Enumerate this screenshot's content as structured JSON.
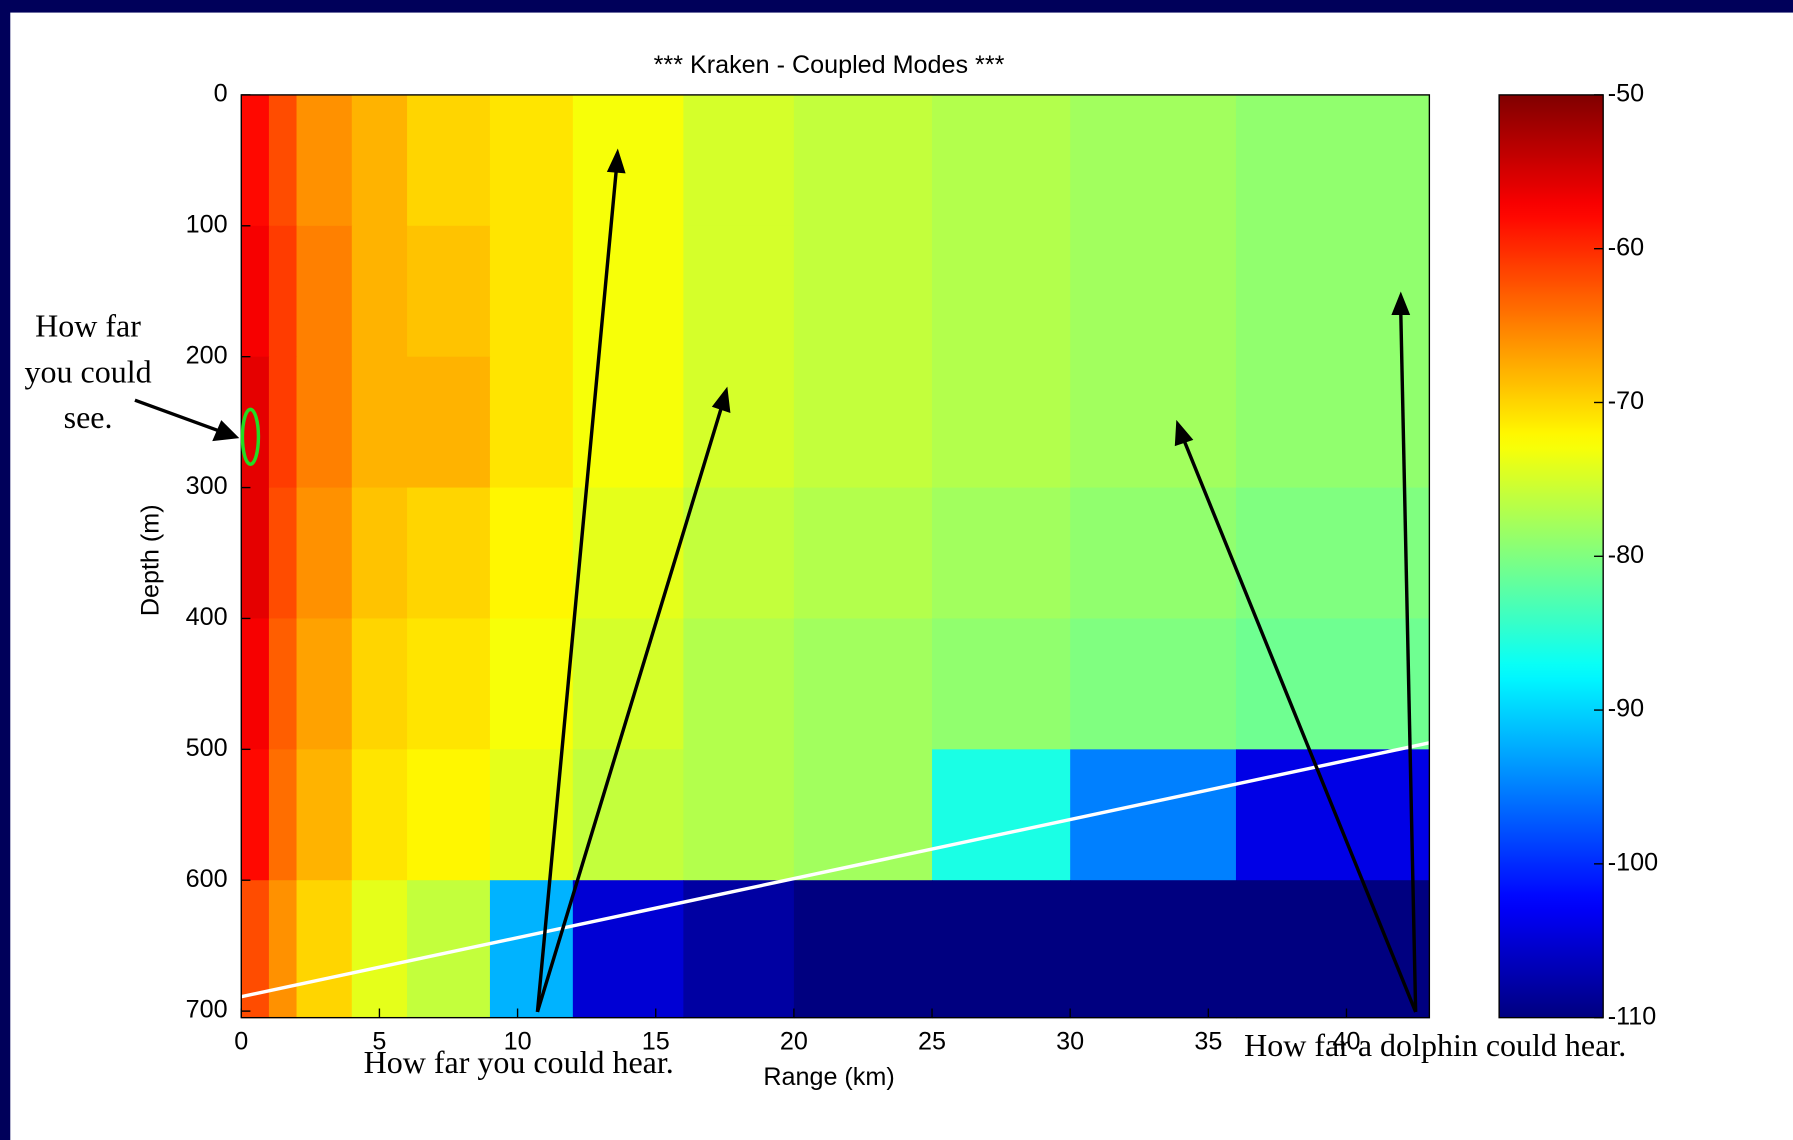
{
  "chart_data": {
    "type": "heatmap",
    "title": "*** Kraken - Coupled Modes ***",
    "xlabel": "Range (km)",
    "ylabel": "Depth (m)",
    "xlim": [
      0,
      43
    ],
    "ylim": [
      0,
      705
    ],
    "y_inverted": true,
    "xticks": [
      0,
      5,
      10,
      15,
      20,
      25,
      30,
      35,
      40
    ],
    "yticks": [
      0,
      100,
      200,
      300,
      400,
      500,
      600,
      700
    ],
    "x_bins": [
      0,
      1,
      2,
      4,
      6,
      9,
      12,
      16,
      20,
      25,
      30,
      36,
      43
    ],
    "y_bins": [
      0,
      100,
      200,
      300,
      400,
      500,
      600,
      705
    ],
    "z": [
      [
        -58,
        -62,
        -66,
        -68,
        -70,
        -71,
        -73,
        -75,
        -76,
        -77,
        -78,
        -79
      ],
      [
        -57,
        -61,
        -65,
        -68,
        -69,
        -71,
        -73,
        -75,
        -76,
        -77,
        -78,
        -79
      ],
      [
        -56,
        -61,
        -65,
        -68,
        -68,
        -71,
        -73,
        -75,
        -76,
        -77,
        -78,
        -79
      ],
      [
        -56,
        -62,
        -66,
        -69,
        -70,
        -72,
        -74,
        -76,
        -77,
        -78,
        -79,
        -80
      ],
      [
        -57,
        -63,
        -67,
        -70,
        -71,
        -73,
        -75,
        -77,
        -78,
        -79,
        -80,
        -81
      ],
      [
        -58,
        -64,
        -68,
        -71,
        -72,
        -74,
        -76,
        -77,
        -78,
        -86,
        -95,
        -104
      ],
      [
        -62,
        -66,
        -70,
        -74,
        -76,
        -92,
        -105,
        -108,
        -110,
        -110,
        -110,
        -110
      ]
    ],
    "clim": [
      -110,
      -50
    ],
    "cticks": [
      -50,
      -60,
      -70,
      -80,
      -90,
      -100,
      -110
    ],
    "bottom_line": {
      "x": [
        0,
        43
      ],
      "y": [
        689,
        495
      ],
      "color": "#ffffff"
    },
    "annotations": [
      {
        "lines": [
          "How far",
          "you could",
          "see."
        ]
      },
      {
        "lines": [
          "How far you could hear."
        ]
      },
      {
        "lines": [
          "How far a dolphin  could hear."
        ]
      }
    ]
  }
}
